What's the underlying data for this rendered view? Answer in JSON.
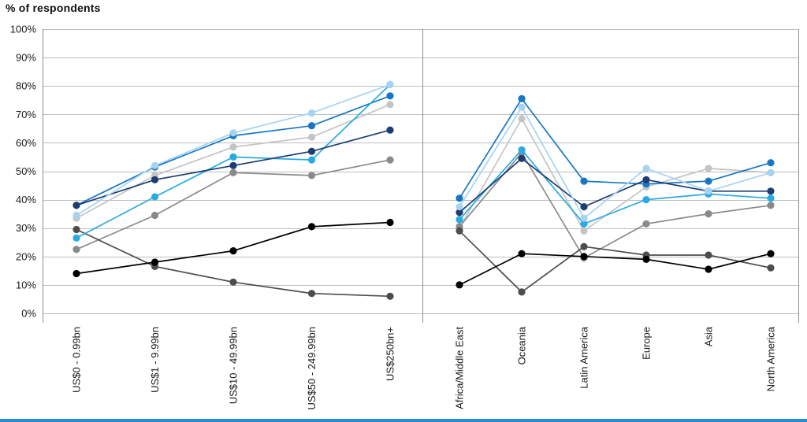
{
  "title": "% of respondents",
  "footer_bar": {
    "color": "#2b8fcb"
  },
  "axis": {
    "ytick_labels": [
      "0%",
      "10%",
      "20%",
      "30%",
      "40%",
      "50%",
      "60%",
      "70%",
      "80%",
      "90%",
      "100%"
    ],
    "grid_color": "#bdbdbd",
    "axis_line_color": "#8c8c8c",
    "label_color": "#1a1a1a"
  },
  "chart_data": {
    "type": "line",
    "title": "% of respondents",
    "ylabel": "% of respondents",
    "xlabel": "",
    "ylim": [
      0,
      100
    ],
    "ytick_step": 10,
    "grid": true,
    "legend_position": "none",
    "panels": [
      {
        "name": "by-revenue",
        "categories": [
          "US$0 - 0.99bn",
          "US$1 - 9.99bn",
          "US$10 - 49.99bn",
          "US$50 - 249.99bn",
          "US$250bn+"
        ]
      },
      {
        "name": "by-region",
        "categories": [
          "Africa/Middle East",
          "Oceania",
          "Latin America",
          "Europe",
          "Asia",
          "North America"
        ]
      }
    ],
    "series": [
      {
        "name": "light-gray",
        "color": "#c4c4c4",
        "values": {
          "by_revenue": [
            33.5,
            48.5,
            58.5,
            62,
            73.5
          ],
          "by_region": [
            30,
            68.5,
            29,
            44.5,
            51,
            49.5
          ]
        }
      },
      {
        "name": "medium-gray",
        "color": "#8a8a8a",
        "values": {
          "by_revenue": [
            22.5,
            34.5,
            49.5,
            48.5,
            54
          ],
          "by_region": [
            30.5,
            56.5,
            19.5,
            31.5,
            35,
            38
          ]
        }
      },
      {
        "name": "dark-gray",
        "color": "#4d4d4d",
        "values": {
          "by_revenue": [
            29.5,
            16.5,
            11,
            7,
            6
          ],
          "by_region": [
            29,
            7.5,
            23.5,
            20.5,
            20.5,
            16
          ]
        }
      },
      {
        "name": "medium-blue",
        "color": "#1777c4",
        "values": {
          "by_revenue": [
            38,
            51.5,
            62.5,
            66,
            76.5
          ],
          "by_region": [
            40.5,
            75.5,
            46.5,
            45.5,
            46.5,
            53
          ]
        }
      },
      {
        "name": "sky-blue",
        "color": "#29abe2",
        "values": {
          "by_revenue": [
            26.5,
            41,
            55,
            54,
            80.5
          ],
          "by_region": [
            33,
            57.5,
            31.5,
            40,
            42,
            40.5
          ]
        }
      },
      {
        "name": "navy",
        "color": "#1d3d73",
        "values": {
          "by_revenue": [
            38,
            47,
            52,
            57,
            64.5
          ],
          "by_region": [
            35.5,
            54.5,
            37.5,
            47,
            43,
            43
          ]
        }
      },
      {
        "name": "pale-blue",
        "color": "#a7d3f1",
        "values": {
          "by_revenue": [
            34.5,
            52,
            63.5,
            70.5,
            80.5
          ],
          "by_region": [
            37.5,
            72.5,
            33.5,
            51,
            43,
            49.5
          ]
        }
      },
      {
        "name": "black",
        "color": "#000000",
        "values": {
          "by_revenue": [
            14,
            18,
            22,
            30.5,
            32
          ],
          "by_region": [
            10,
            21,
            20,
            19,
            15.5,
            21
          ]
        }
      }
    ]
  }
}
